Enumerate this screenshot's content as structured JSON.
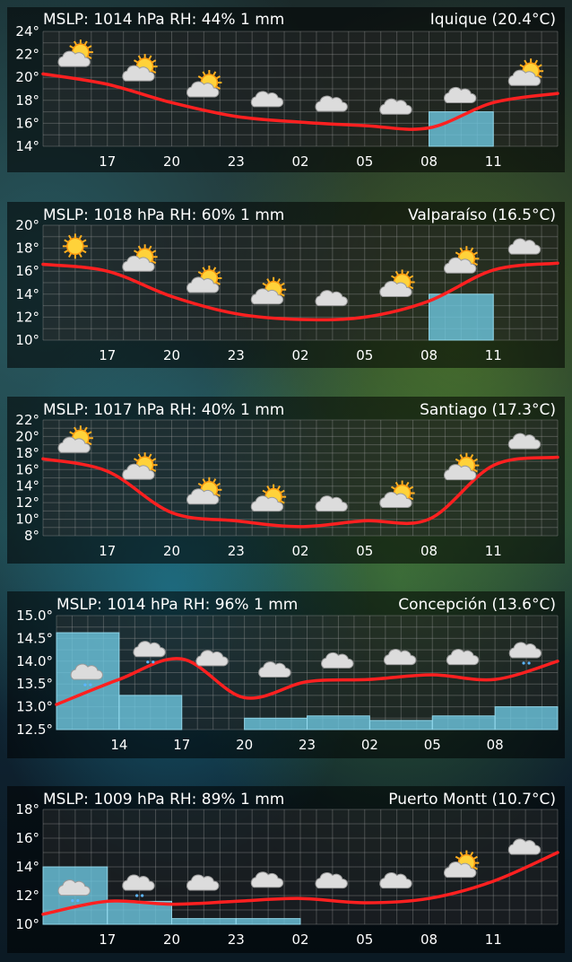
{
  "widgets": [
    {
      "header": {
        "left": "MSLP: 1014 hPa  RH: 44%  1 mm",
        "right": "Iquique (20.4°C)"
      },
      "chart_data": {
        "type": "line",
        "y_ticks": [
          "24°",
          "22°",
          "20°",
          "18°",
          "16°",
          "14°"
        ],
        "ylim": [
          14,
          24
        ],
        "x_ticks": [
          "17",
          "20",
          "23",
          "02",
          "05",
          "08",
          "11"
        ],
        "temperature": [
          20.3,
          19.4,
          17.8,
          16.6,
          16.1,
          15.8,
          15.6,
          17.8,
          18.6
        ],
        "precip": [
          0,
          0,
          0,
          0,
          0,
          0,
          0.3,
          0
        ],
        "icons": [
          "sun-cloud",
          "sun-cloud",
          "sun-cloud",
          "cloud",
          "cloud",
          "cloud",
          "cloud",
          "sun-cloud"
        ]
      }
    },
    {
      "header": {
        "left": "MSLP: 1018 hPa  RH: 60%  1 mm",
        "right": "Valparaíso (16.5°C)"
      },
      "chart_data": {
        "type": "line",
        "y_ticks": [
          "20°",
          "18°",
          "16°",
          "14°",
          "12°",
          "10°"
        ],
        "ylim": [
          10,
          20
        ],
        "x_ticks": [
          "17",
          "20",
          "23",
          "02",
          "05",
          "08",
          "11"
        ],
        "temperature": [
          16.6,
          16.0,
          13.8,
          12.3,
          11.8,
          12.0,
          13.4,
          16.1,
          16.7
        ],
        "precip": [
          0,
          0,
          0,
          0,
          0,
          0,
          0.4,
          0
        ],
        "icons": [
          "sun",
          "sun-cloud",
          "sun-cloud",
          "sun-cloud",
          "cloud",
          "sun-cloud",
          "sun-cloud",
          "cloud"
        ]
      }
    },
    {
      "header": {
        "left": "MSLP: 1017 hPa  RH: 40%  1 mm",
        "right": "Santiago (17.3°C)"
      },
      "chart_data": {
        "type": "line",
        "y_ticks": [
          "22°",
          "20°",
          "18°",
          "16°",
          "14°",
          "12°",
          "10°",
          "8°"
        ],
        "ylim": [
          8,
          22
        ],
        "x_ticks": [
          "17",
          "20",
          "23",
          "02",
          "05",
          "08",
          "11"
        ],
        "temperature": [
          17.3,
          15.8,
          10.8,
          9.8,
          9.1,
          9.8,
          10.0,
          16.5,
          17.5
        ],
        "precip": [
          0,
          0,
          0,
          0,
          0,
          0,
          0,
          0
        ],
        "icons": [
          "sun-cloud",
          "sun-cloud",
          "sun-cloud",
          "sun-cloud",
          "cloud",
          "sun-cloud",
          "sun-cloud",
          "cloud"
        ]
      }
    },
    {
      "header": {
        "left": "MSLP: 1014 hPa  RH: 96%  1 mm",
        "right": "Concepción (13.6°C)"
      },
      "chart_data": {
        "type": "line",
        "y_ticks": [
          "15.0°",
          "14.5°",
          "14.0°",
          "13.5°",
          "13.0°",
          "12.5°"
        ],
        "ylim": [
          12.5,
          15.0
        ],
        "x_ticks": [
          "14",
          "17",
          "20",
          "23",
          "02",
          "05",
          "08"
        ],
        "temperature": [
          13.05,
          13.6,
          14.05,
          13.2,
          13.55,
          13.6,
          13.7,
          13.6,
          14.0
        ],
        "precip": [
          0.85,
          0.3,
          0,
          0.1,
          0.12,
          0.08,
          0.12,
          0.2
        ],
        "icons": [
          "cloud-rain",
          "cloud-rain",
          "cloud",
          "cloud",
          "cloud",
          "cloud",
          "cloud",
          "cloud-rain"
        ]
      }
    },
    {
      "header": {
        "left": "MSLP: 1009 hPa  RH: 89%  1 mm",
        "right": "Puerto Montt (10.7°C)"
      },
      "chart_data": {
        "type": "line",
        "y_ticks": [
          "18°",
          "16°",
          "14°",
          "12°",
          "10°"
        ],
        "ylim": [
          10,
          18
        ],
        "x_ticks": [
          "17",
          "20",
          "23",
          "02",
          "05",
          "08",
          "11"
        ],
        "temperature": [
          10.7,
          11.6,
          11.4,
          11.6,
          11.8,
          11.5,
          11.8,
          13.0,
          15.0
        ],
        "precip": [
          0.5,
          0.2,
          0.05,
          0.05,
          0,
          0,
          0,
          0
        ],
        "icons": [
          "cloud-rain",
          "cloud-rain",
          "cloud",
          "cloud",
          "cloud",
          "cloud",
          "sun-cloud",
          "cloud"
        ]
      }
    }
  ]
}
